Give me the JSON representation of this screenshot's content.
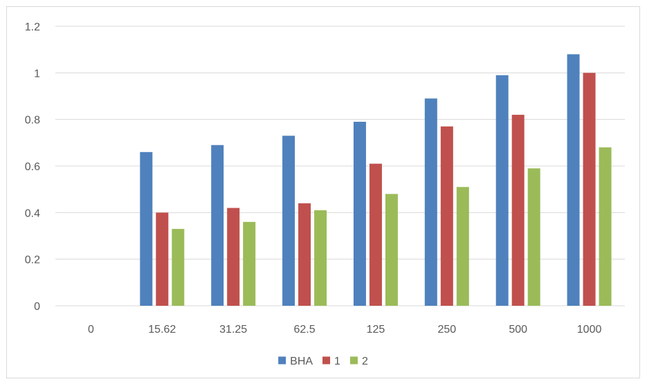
{
  "chart_data": {
    "type": "bar",
    "title": "",
    "xlabel": "",
    "ylabel": "",
    "categories": [
      "0",
      "15.62",
      "31.25",
      "62.5",
      "125",
      "250",
      "500",
      "1000"
    ],
    "series": [
      {
        "name": "BHA",
        "color": "#4f81bd",
        "values": [
          0,
          0.66,
          0.69,
          0.73,
          0.79,
          0.89,
          0.99,
          1.08
        ]
      },
      {
        "name": "1",
        "color": "#c0504d",
        "values": [
          0,
          0.4,
          0.42,
          0.44,
          0.61,
          0.77,
          0.82,
          1.0
        ]
      },
      {
        "name": "2",
        "color": "#9bbb59",
        "values": [
          0,
          0.33,
          0.36,
          0.41,
          0.48,
          0.51,
          0.59,
          0.68
        ]
      }
    ],
    "ylim": [
      0,
      1.2
    ],
    "yticks": [
      "0",
      "0.2",
      "0.4",
      "0.6",
      "0.8",
      "1",
      "1.2"
    ],
    "grid": true,
    "legend_position": "bottom",
    "gridline_color": "#d9d9d9",
    "text_color": "#595959"
  }
}
